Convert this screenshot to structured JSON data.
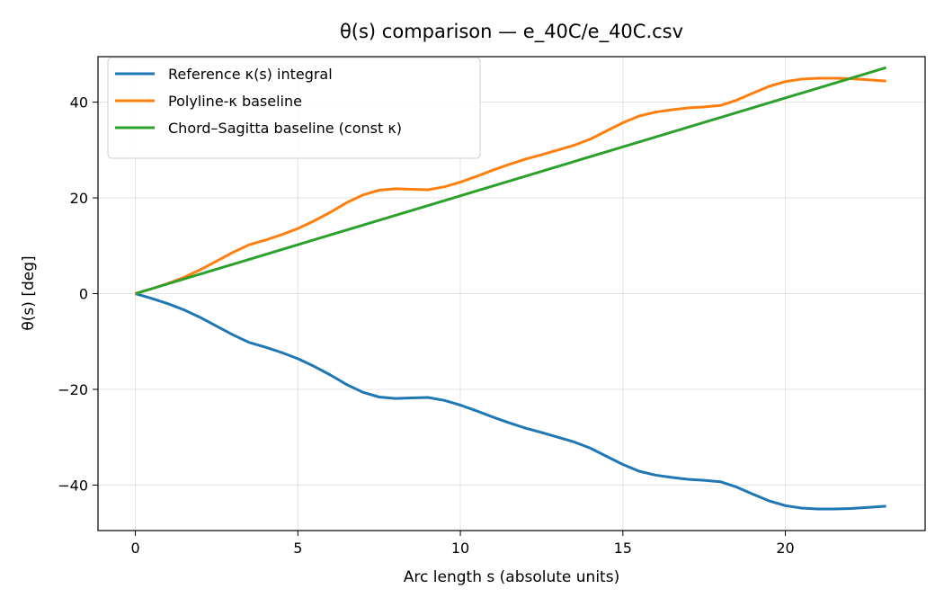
{
  "chart_data": {
    "type": "line",
    "title": "θ(s) comparison — e_40C/e_40C.csv",
    "xlabel": "Arc length s (absolute units)",
    "ylabel": "θ(s) [deg]",
    "xlim": [
      -1.15,
      24.3
    ],
    "ylim": [
      -49.5,
      49.5
    ],
    "xticks": [
      0,
      5,
      10,
      15,
      20
    ],
    "xtick_labels": [
      "0",
      "5",
      "10",
      "15",
      "20"
    ],
    "yticks": [
      -40,
      -20,
      0,
      20,
      40
    ],
    "ytick_labels": [
      "−40",
      "−20",
      "0",
      "20",
      "40"
    ],
    "grid": true,
    "legend": "top-left",
    "series": [
      {
        "name": "Reference κ(s) integral",
        "color": "#1f77b4",
        "x": [
          0,
          0.5,
          1,
          1.5,
          2,
          2.5,
          3,
          3.5,
          4,
          4.5,
          5,
          5.5,
          6,
          6.5,
          7,
          7.5,
          8,
          8.5,
          9,
          9.5,
          10,
          10.5,
          11,
          11.5,
          12,
          12.5,
          13,
          13.5,
          14,
          14.5,
          15,
          15.5,
          16,
          16.5,
          17,
          17.5,
          18,
          18.5,
          19,
          19.5,
          20,
          20.5,
          21,
          21.5,
          22,
          22.5,
          23.1
        ],
        "y": [
          0,
          -1.0,
          -2.1,
          -3.4,
          -5.0,
          -6.8,
          -8.6,
          -10.2,
          -11.2,
          -12.3,
          -13.6,
          -15.2,
          -17.0,
          -19.0,
          -20.6,
          -21.6,
          -21.9,
          -21.8,
          -21.7,
          -22.3,
          -23.3,
          -24.5,
          -25.8,
          -27.0,
          -28.1,
          -29.0,
          -30.0,
          -31.0,
          -32.3,
          -34.0,
          -35.7,
          -37.1,
          -37.9,
          -38.4,
          -38.8,
          -39.0,
          -39.3,
          -40.4,
          -41.9,
          -43.3,
          -44.3,
          -44.8,
          -45.0,
          -45.0,
          -44.9,
          -44.7,
          -44.4
        ]
      },
      {
        "name": "Polyline-κ baseline",
        "color": "#ff7f0e",
        "x": [
          0,
          0.5,
          1,
          1.5,
          2,
          2.5,
          3,
          3.5,
          4,
          4.5,
          5,
          5.5,
          6,
          6.5,
          7,
          7.5,
          8,
          8.5,
          9,
          9.5,
          10,
          10.5,
          11,
          11.5,
          12,
          12.5,
          13,
          13.5,
          14,
          14.5,
          15,
          15.5,
          16,
          16.5,
          17,
          17.5,
          18,
          18.5,
          19,
          19.5,
          20,
          20.5,
          21,
          21.5,
          22,
          22.5,
          23.1
        ],
        "y": [
          0,
          1.0,
          2.1,
          3.4,
          5.0,
          6.8,
          8.6,
          10.2,
          11.2,
          12.3,
          13.6,
          15.2,
          17.0,
          19.0,
          20.6,
          21.6,
          21.9,
          21.8,
          21.7,
          22.3,
          23.3,
          24.5,
          25.8,
          27.0,
          28.1,
          29.0,
          30.0,
          31.0,
          32.3,
          34.0,
          35.7,
          37.1,
          37.9,
          38.4,
          38.8,
          39.0,
          39.3,
          40.4,
          41.9,
          43.3,
          44.3,
          44.8,
          45.0,
          45.0,
          44.9,
          44.7,
          44.4
        ]
      },
      {
        "name": "Chord–Sagitta baseline (const κ)",
        "color": "#2ca02c",
        "x": [
          0,
          23.1
        ],
        "y": [
          0,
          47.2
        ]
      }
    ]
  }
}
